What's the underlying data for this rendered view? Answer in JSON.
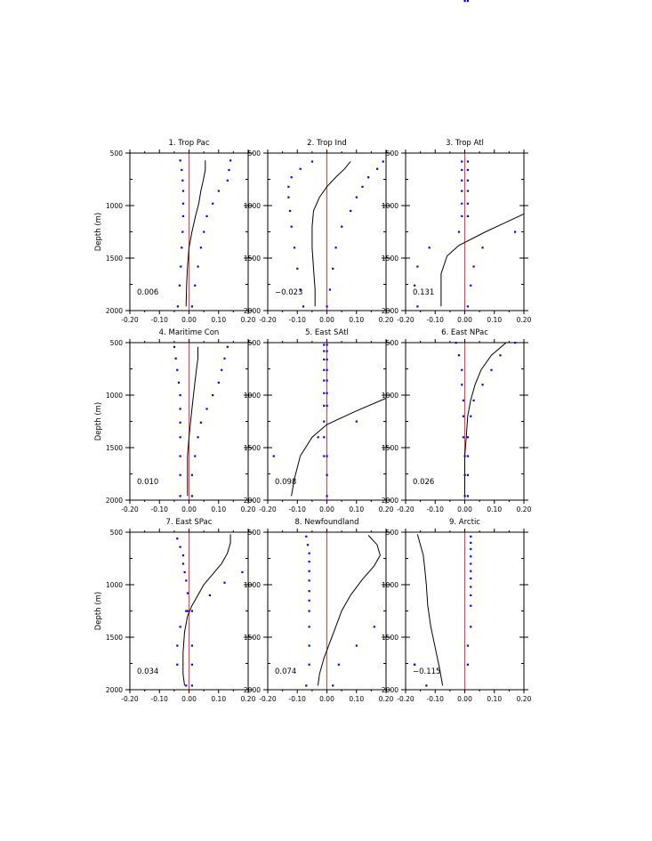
{
  "colors": {
    "zero_line": "#ff0000",
    "dots": "#0000ff",
    "line": "#000000"
  },
  "chart_data": [
    {
      "type": "line",
      "title": "1. Trop Pac",
      "value_label": "0.006",
      "xlabel": "",
      "ylabel": "Depth (m)",
      "xlim": [
        -0.2,
        0.2
      ],
      "ylim": [
        2000,
        500
      ],
      "xticks": [
        "-0.20",
        "-0.10",
        "0.00",
        "0.10",
        "0.20"
      ],
      "yticks": [
        "500",
        "1000",
        "1500",
        "2000"
      ],
      "depth": [
        570,
        660,
        760,
        860,
        980,
        1100,
        1250,
        1400,
        1580,
        1760,
        1960
      ],
      "line": [
        0.055,
        0.055,
        0.048,
        0.04,
        0.033,
        0.022,
        0.01,
        0.0,
        -0.005,
        -0.008,
        -0.01
      ],
      "dots_left": [
        -0.03,
        -0.025,
        -0.022,
        -0.02,
        -0.02,
        -0.02,
        -0.022,
        -0.025,
        -0.028,
        -0.032,
        -0.038
      ],
      "dots_right": [
        0.14,
        0.135,
        0.13,
        0.1,
        0.08,
        0.06,
        0.05,
        0.04,
        0.03,
        0.02,
        0.01
      ]
    },
    {
      "type": "line",
      "title": "2. Trop Ind",
      "value_label": "−0.023",
      "xlabel": "",
      "ylabel": "",
      "xlim": [
        -0.2,
        0.2
      ],
      "ylim": [
        2000,
        500
      ],
      "xticks": [
        "-0.20",
        "-0.10",
        "0.00",
        "0.10",
        "0.20"
      ],
      "yticks": [
        "500",
        "1000",
        "1500",
        "2000"
      ],
      "depth": [
        580,
        650,
        730,
        820,
        920,
        1050,
        1200,
        1400,
        1600,
        1800,
        1960
      ],
      "line": [
        0.08,
        0.06,
        0.03,
        0.0,
        -0.025,
        -0.045,
        -0.05,
        -0.05,
        -0.045,
        -0.04,
        -0.04
      ],
      "dots_left": [
        -0.05,
        -0.09,
        -0.12,
        -0.13,
        -0.13,
        -0.125,
        -0.12,
        -0.11,
        -0.1,
        -0.09,
        -0.08
      ],
      "dots_right": [
        0.19,
        0.17,
        0.14,
        0.12,
        0.1,
        0.08,
        0.05,
        0.03,
        0.02,
        0.01,
        0.0
      ]
    },
    {
      "type": "line",
      "title": "3. Trop Atl",
      "value_label": "0.131",
      "xlabel": "",
      "ylabel": "",
      "xlim": [
        -0.2,
        0.2
      ],
      "ylim": [
        2000,
        500
      ],
      "xticks": [
        "-0.20",
        "-0.10",
        "0.00",
        "0.10",
        "0.20"
      ],
      "yticks": [
        "500",
        "1000",
        "1500",
        "2000"
      ],
      "depth": [
        1080,
        1250,
        1380,
        1480,
        1650,
        1800,
        1960
      ],
      "line": [
        0.2,
        0.07,
        -0.02,
        -0.06,
        -0.08,
        -0.08,
        -0.08
      ],
      "dots_left": [
        -0.01,
        -0.01,
        -0.01,
        -0.01,
        -0.01,
        -0.01,
        -0.02,
        -0.12,
        -0.16,
        -0.17,
        -0.16
      ],
      "dots_left_depth": [
        580,
        660,
        760,
        860,
        980,
        1100,
        1250,
        1400,
        1580,
        1760,
        1960
      ],
      "dots_right": [
        0.01,
        0.01,
        0.01,
        0.01,
        0.01,
        0.01,
        0.17,
        0.06,
        0.03,
        0.02,
        0.01
      ],
      "dots_right_depth": [
        580,
        660,
        760,
        860,
        980,
        1100,
        1250,
        1400,
        1580,
        1760,
        1960
      ]
    },
    {
      "type": "line",
      "title": "4. Maritime Con",
      "value_label": "0.010",
      "xlabel": "",
      "ylabel": "Depth (m)",
      "xlim": [
        -0.2,
        0.2
      ],
      "ylim": [
        2000,
        500
      ],
      "xticks": [
        "-0.20",
        "-0.10",
        "0.00",
        "0.10",
        "0.20"
      ],
      "yticks": [
        "500",
        "1000",
        "1500",
        "2000"
      ],
      "depth": [
        540,
        650,
        760,
        880,
        1000,
        1130,
        1260,
        1400,
        1580,
        1760,
        1960
      ],
      "line": [
        0.03,
        0.03,
        0.025,
        0.02,
        0.015,
        0.01,
        0.005,
        0.0,
        -0.005,
        -0.005,
        -0.005
      ],
      "dots_left": [
        -0.05,
        -0.045,
        -0.04,
        -0.035,
        -0.03,
        -0.03,
        -0.03,
        -0.03,
        -0.03,
        -0.03,
        -0.03
      ],
      "dots_right": [
        0.13,
        0.12,
        0.11,
        0.1,
        0.08,
        0.06,
        0.04,
        0.03,
        0.02,
        0.01,
        0.01
      ]
    },
    {
      "type": "line",
      "title": "5. East SAtl",
      "value_label": "0.098",
      "xlabel": "",
      "ylabel": "",
      "xlim": [
        -0.2,
        0.2
      ],
      "ylim": [
        2000,
        500
      ],
      "xticks": [
        "-0.20",
        "-0.10",
        "0.00",
        "0.10",
        "0.20"
      ],
      "yticks": [
        "500",
        "1000",
        "1500",
        "2000"
      ],
      "depth": [
        1030,
        1150,
        1280,
        1400,
        1580,
        1800,
        1960
      ],
      "line": [
        0.2,
        0.1,
        0.0,
        -0.05,
        -0.09,
        -0.11,
        -0.12
      ],
      "dots_left": [
        -0.01,
        -0.01,
        -0.01,
        -0.01,
        -0.01,
        -0.01,
        -0.01,
        -0.01,
        -0.01,
        -0.01,
        -0.03,
        -0.18
      ],
      "dots_left_depth": [
        520,
        580,
        660,
        760,
        860,
        980,
        1100,
        1250,
        1400,
        1580,
        1400,
        1580
      ],
      "dots_right": [
        0.0,
        0.0,
        0.0,
        0.0,
        0.0,
        0.0,
        0.0,
        0.1,
        0.0,
        0.0,
        0.0
      ],
      "dots_right_depth": [
        520,
        580,
        660,
        760,
        860,
        980,
        1100,
        1250,
        1580,
        1760,
        1960
      ]
    },
    {
      "type": "line",
      "title": "6. East NPac",
      "value_label": "0.026",
      "xlabel": "",
      "ylabel": "",
      "xlim": [
        -0.2,
        0.2
      ],
      "ylim": [
        2000,
        500
      ],
      "xticks": [
        "-0.20",
        "-0.10",
        "0.00",
        "0.10",
        "0.20"
      ],
      "yticks": [
        "500",
        "1000",
        "1500",
        "2000"
      ],
      "depth": [
        500,
        620,
        760,
        900,
        1050,
        1200,
        1400,
        1580,
        1760,
        1960
      ],
      "line": [
        0.14,
        0.09,
        0.055,
        0.035,
        0.02,
        0.01,
        0.005,
        0.0,
        0.0,
        0.0
      ],
      "dots_left": [
        -0.03,
        -0.02,
        -0.01,
        -0.01,
        -0.005,
        -0.005,
        -0.005,
        0.0,
        0.0,
        0.0,
        0.0
      ],
      "dots_right": [
        0.17,
        0.12,
        0.09,
        0.06,
        0.03,
        0.02,
        0.01,
        0.01,
        0.01,
        0.01,
        0.01
      ]
    },
    {
      "type": "line",
      "title": "7. East SPac",
      "value_label": "0.034",
      "xlabel": "",
      "ylabel": "Depth (m)",
      "xlim": [
        -0.2,
        0.2
      ],
      "ylim": [
        2000,
        500
      ],
      "xticks": [
        "-0.20",
        "-0.10",
        "0.00",
        "0.10",
        "0.20"
      ],
      "yticks": [
        "500",
        "1000",
        "1500",
        "2000"
      ],
      "depth": [
        520,
        600,
        700,
        800,
        900,
        1000,
        1100,
        1200,
        1300,
        1450,
        1650,
        1850,
        1960
      ],
      "line": [
        0.14,
        0.14,
        0.13,
        0.11,
        0.08,
        0.05,
        0.03,
        0.01,
        -0.005,
        -0.015,
        -0.02,
        -0.02,
        -0.015
      ],
      "dots_left": [
        -0.04,
        -0.03,
        -0.02,
        -0.02,
        -0.015,
        -0.01,
        -0.005,
        -0.005,
        -0.01,
        -0.03,
        -0.04,
        -0.04,
        -0.01
      ],
      "dots_left_depth": [
        560,
        640,
        720,
        800,
        880,
        960,
        1080,
        1250,
        1250,
        1400,
        1580,
        1760,
        1960
      ],
      "dots_right": [
        0.18,
        0.12,
        0.07,
        0.01,
        0.01,
        0.01,
        0.01
      ],
      "dots_right_depth": [
        880,
        980,
        1100,
        1250,
        1580,
        1760,
        1960
      ]
    },
    {
      "type": "line",
      "title": "8. Newfoundland",
      "value_label": "0.074",
      "xlabel": "",
      "ylabel": "",
      "xlim": [
        -0.2,
        0.2
      ],
      "ylim": [
        2000,
        500
      ],
      "xticks": [
        "-0.20",
        "-0.10",
        "0.00",
        "0.10",
        "0.20"
      ],
      "yticks": [
        "500",
        "1000",
        "1500",
        "2000"
      ],
      "depth": [
        530,
        620,
        720,
        820,
        950,
        1100,
        1250,
        1400,
        1550,
        1700,
        1850,
        1960
      ],
      "line": [
        0.14,
        0.17,
        0.18,
        0.16,
        0.12,
        0.08,
        0.05,
        0.03,
        0.01,
        -0.01,
        -0.025,
        -0.03
      ],
      "dots_left": [
        -0.07,
        -0.065,
        -0.06,
        -0.06,
        -0.06,
        -0.06,
        -0.06,
        -0.06,
        -0.06,
        -0.06,
        -0.06,
        -0.06,
        -0.07
      ],
      "dots_left_depth": [
        540,
        620,
        700,
        780,
        870,
        960,
        1060,
        1150,
        1250,
        1400,
        1580,
        1760,
        1960
      ],
      "dots_right": [
        0.16,
        0.1,
        0.04,
        0.02
      ],
      "dots_right_depth": [
        1400,
        1580,
        1760,
        1960
      ]
    },
    {
      "type": "line",
      "title": "9. Arctic",
      "value_label": "−0.115",
      "xlabel": "",
      "ylabel": "",
      "xlim": [
        -0.2,
        0.2
      ],
      "ylim": [
        2000,
        500
      ],
      "xticks": [
        "-0.20",
        "-0.10",
        "0.00",
        "0.10",
        "0.20"
      ],
      "yticks": [
        "500",
        "1000",
        "1500",
        "2000"
      ],
      "depth": [
        520,
        620,
        720,
        850,
        1000,
        1200,
        1400,
        1600,
        1800,
        1960
      ],
      "line": [
        -0.16,
        -0.15,
        -0.14,
        -0.135,
        -0.13,
        -0.125,
        -0.115,
        -0.1,
        -0.085,
        -0.075
      ],
      "dots_left": [
        -0.17,
        -0.17,
        -0.13
      ],
      "dots_left_depth": [
        1760,
        1760,
        1960
      ],
      "dots_right": [
        0.02,
        0.02,
        0.02,
        0.02,
        0.02,
        0.02,
        0.02,
        0.02,
        0.02,
        0.02,
        0.02,
        0.01,
        0.01
      ],
      "dots_right_depth": [
        540,
        600,
        660,
        730,
        800,
        870,
        940,
        1020,
        1100,
        1200,
        1400,
        1580,
        1760
      ]
    }
  ]
}
